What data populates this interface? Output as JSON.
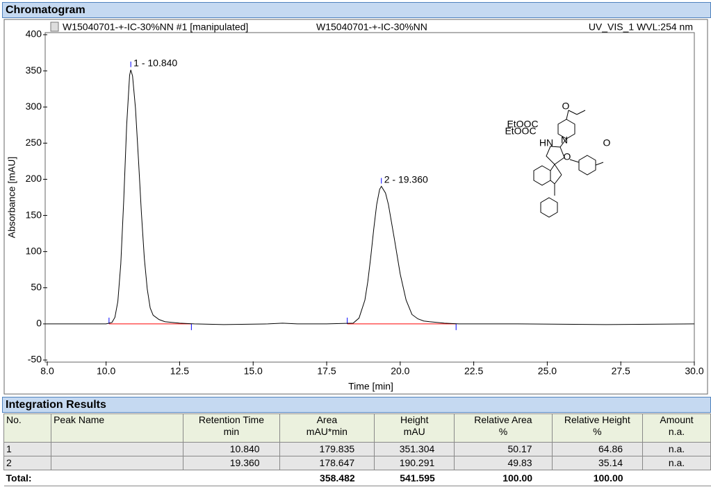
{
  "sections": {
    "chromatogram": "Chromatogram",
    "integration": "Integration Results"
  },
  "chart_data": {
    "type": "line",
    "header_left": "W15040701-+-IC-30%NN #1 [manipulated]",
    "header_center": "W15040701-+-IC-30%NN",
    "header_right": "UV_VIS_1 WVL:254 nm",
    "xlabel": "Time [min]",
    "ylabel": "Absorbance [mAU]",
    "xlim": [
      8,
      30
    ],
    "ylim": [
      -50,
      400
    ],
    "xticks": [
      {
        "value": 8,
        "label": "8.0"
      },
      {
        "value": 10,
        "label": "10.0"
      },
      12.5,
      {
        "value": 15,
        "label": "15.0"
      },
      17.5,
      {
        "value": 20,
        "label": "20.0"
      },
      22.5,
      {
        "value": 25,
        "label": "25.0"
      },
      27.5,
      {
        "value": 30,
        "label": "30.0"
      }
    ],
    "yticks": [
      -50,
      0,
      50,
      100,
      150,
      200,
      250,
      300,
      350,
      400
    ],
    "color": "#000000",
    "x": [
      8.0,
      9.0,
      10.0,
      10.2,
      10.3,
      10.4,
      10.5,
      10.6,
      10.7,
      10.8,
      10.84,
      10.9,
      11.0,
      11.1,
      11.2,
      11.3,
      11.4,
      11.5,
      11.6,
      11.8,
      12.0,
      12.5,
      13.0,
      14.0,
      15.5,
      16.0,
      16.5,
      17.5,
      18.4,
      18.6,
      18.8,
      18.9,
      19.0,
      19.1,
      19.2,
      19.3,
      19.36,
      19.5,
      19.6,
      19.8,
      20.0,
      20.2,
      20.4,
      20.6,
      20.8,
      21.0,
      21.5,
      22.0,
      24.0,
      27.0,
      30.0
    ],
    "values": [
      0,
      0,
      0,
      2,
      9,
      31,
      83,
      171,
      275,
      344,
      351.304,
      343,
      298,
      228,
      154,
      91,
      48,
      22,
      12,
      6,
      3,
      1,
      0,
      -1,
      0,
      1,
      0,
      0,
      1,
      8,
      33,
      59,
      93,
      131,
      165,
      186,
      190.291,
      181,
      165,
      118,
      69,
      33,
      13,
      7,
      4,
      3,
      1,
      0,
      0,
      -1,
      0
    ],
    "annotations": [
      {
        "text": "1 - 10.840",
        "x": 10.84,
        "y": 351.304
      },
      {
        "text": "2 - 19.360",
        "x": 19.36,
        "y": 190.291
      }
    ],
    "baselines": [
      {
        "x": [
          10.1,
          12.9
        ],
        "y": [
          0,
          0
        ]
      },
      {
        "x": [
          18.2,
          21.9
        ],
        "y": [
          0,
          0
        ]
      }
    ],
    "baseline_color": "#ff0000"
  },
  "structure": {
    "labels": [
      "O",
      "EtOOC",
      "EtOOC",
      "HN",
      "N",
      "O",
      "O"
    ]
  },
  "table": {
    "columns": [
      {
        "name": "No."
      },
      {
        "name": "Peak Name"
      },
      {
        "name": "Retention Time",
        "unit": "min"
      },
      {
        "name": "Area",
        "unit": "mAU*min"
      },
      {
        "name": "Height",
        "unit": "mAU"
      },
      {
        "name": "Relative Area",
        "unit": "%"
      },
      {
        "name": "Relative Height",
        "unit": "%"
      },
      {
        "name": "Amount",
        "unit": "n.a."
      }
    ],
    "rows": [
      [
        "1",
        null,
        "10.840",
        "179.835",
        "351.304",
        "50.17",
        "64.86",
        "n.a."
      ],
      [
        "2",
        null,
        "19.360",
        "178.647",
        "190.291",
        "49.83",
        "35.14",
        "n.a."
      ]
    ],
    "total": {
      "label": "Total:",
      "cells": [
        null,
        null,
        "358.482",
        "541.595",
        "100.00",
        "100.00",
        null
      ]
    }
  }
}
